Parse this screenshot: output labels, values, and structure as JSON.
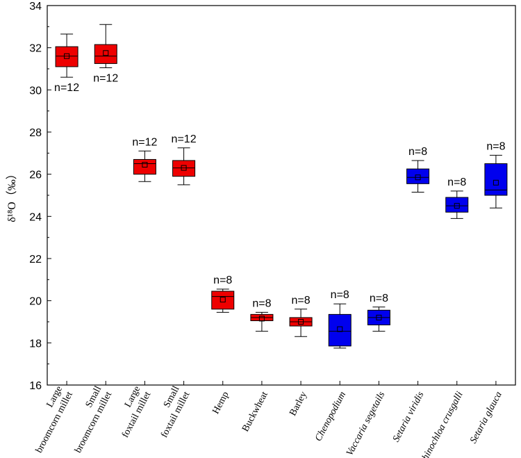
{
  "chart_data": {
    "type": "box",
    "ylabel": "δ¹⁸O（‰）",
    "ylim": [
      16,
      34
    ],
    "yticks": [
      "16",
      "18",
      "20",
      "22",
      "24",
      "26",
      "28",
      "30",
      "32",
      "34"
    ],
    "colors": {
      "red": "#ee0000",
      "blue": "#0000ee"
    },
    "categories": [
      {
        "label_lines": [
          "Large",
          "broomcorn millet"
        ],
        "italic": false,
        "color": "red",
        "min": 30.6,
        "q1": 31.1,
        "median": 31.6,
        "q3": 32.05,
        "max": 32.65,
        "mean": 31.6,
        "n_label": "n=12",
        "n_position": "below"
      },
      {
        "label_lines": [
          "Small",
          "broomcorn millet"
        ],
        "italic": false,
        "color": "red",
        "min": 31.05,
        "q1": 31.25,
        "median": 31.6,
        "q3": 32.15,
        "max": 33.1,
        "mean": 31.75,
        "n_label": "n=12",
        "n_position": "below"
      },
      {
        "label_lines": [
          "Large",
          "foxtail millet"
        ],
        "italic": false,
        "color": "red",
        "min": 25.65,
        "q1": 26.0,
        "median": 26.5,
        "q3": 26.7,
        "max": 27.1,
        "mean": 26.45,
        "n_label": "n=12",
        "n_position": "above"
      },
      {
        "label_lines": [
          "Small",
          "foxtail millet"
        ],
        "italic": false,
        "color": "red",
        "min": 25.5,
        "q1": 25.9,
        "median": 26.3,
        "q3": 26.65,
        "max": 27.25,
        "mean": 26.3,
        "n_label": "n=12",
        "n_position": "above"
      },
      {
        "label_lines": [
          "Hemp"
        ],
        "italic": false,
        "color": "red",
        "min": 19.45,
        "q1": 19.6,
        "median": 20.2,
        "q3": 20.45,
        "max": 20.55,
        "mean": 20.05,
        "n_label": "n=8",
        "n_position": "above"
      },
      {
        "label_lines": [
          "Buckwheat"
        ],
        "italic": false,
        "color": "red",
        "min": 18.55,
        "q1": 19.05,
        "median": 19.2,
        "q3": 19.35,
        "max": 19.45,
        "mean": 19.15,
        "n_label": "n=8",
        "n_position": "above"
      },
      {
        "label_lines": [
          "Barley"
        ],
        "italic": false,
        "color": "red",
        "min": 18.3,
        "q1": 18.8,
        "median": 19.0,
        "q3": 19.2,
        "max": 19.6,
        "mean": 19.0,
        "n_label": "n=8",
        "n_position": "above"
      },
      {
        "label_lines": [
          "Chenopodium"
        ],
        "italic": true,
        "color": "blue",
        "min": 17.75,
        "q1": 17.85,
        "median": 18.55,
        "q3": 19.35,
        "max": 19.85,
        "mean": 18.65,
        "n_label": "n=8",
        "n_position": "above"
      },
      {
        "label_lines": [
          "Vaccaria segetails"
        ],
        "italic": true,
        "color": "blue",
        "min": 18.55,
        "q1": 18.85,
        "median": 19.2,
        "q3": 19.55,
        "max": 19.7,
        "mean": 19.2,
        "n_label": "n=8",
        "n_position": "above"
      },
      {
        "label_lines": [
          "Setaria viridis"
        ],
        "italic": true,
        "color": "blue",
        "min": 25.15,
        "q1": 25.55,
        "median": 25.85,
        "q3": 26.25,
        "max": 26.65,
        "mean": 25.85,
        "n_label": "n=8",
        "n_position": "above"
      },
      {
        "label_lines": [
          "Echinochloa crusgalli"
        ],
        "italic": true,
        "color": "blue",
        "min": 23.9,
        "q1": 24.2,
        "median": 24.5,
        "q3": 24.9,
        "max": 25.2,
        "mean": 24.5,
        "n_label": "n=8",
        "n_position": "above"
      },
      {
        "label_lines": [
          "Setaria glauca"
        ],
        "italic": true,
        "color": "blue",
        "min": 24.4,
        "q1": 25.0,
        "median": 25.25,
        "q3": 26.5,
        "max": 26.9,
        "mean": 25.6,
        "n_label": "n=8",
        "n_position": "above"
      }
    ]
  }
}
